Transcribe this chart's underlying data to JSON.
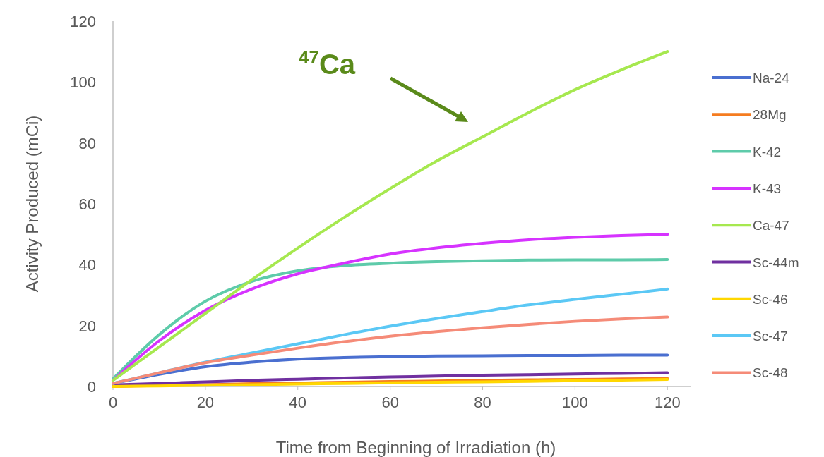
{
  "chart_data": {
    "type": "line",
    "xlabel": "Time from Beginning of Irradiation (h)",
    "ylabel": "Activity Produced (mCi)",
    "x": [
      0,
      10,
      20,
      30,
      40,
      50,
      60,
      70,
      80,
      90,
      100,
      110,
      120
    ],
    "xlim": [
      0,
      125
    ],
    "xticks": [
      0,
      20,
      40,
      60,
      80,
      100,
      120
    ],
    "ylim": [
      0,
      120
    ],
    "yticks": [
      0,
      20,
      40,
      60,
      80,
      100,
      120
    ],
    "grid": false,
    "legend": "right",
    "marker": "none",
    "line_style": "solid",
    "series": [
      {
        "name": "Na-24",
        "color": "#4a6fd0",
        "values": [
          1,
          4,
          6.5,
          8,
          9,
          9.5,
          9.8,
          10,
          10.1,
          10.2,
          10.2,
          10.3,
          10.3
        ]
      },
      {
        "name": "28Mg",
        "color": "#f57c20",
        "values": [
          0,
          0.3,
          0.6,
          0.9,
          1.1,
          1.4,
          1.6,
          1.8,
          2,
          2.2,
          2.3,
          2.5,
          2.6
        ]
      },
      {
        "name": "K-42",
        "color": "#5ecbaa",
        "values": [
          2.5,
          17,
          28,
          34.5,
          38,
          39.7,
          40.5,
          41,
          41.3,
          41.5,
          41.6,
          41.6,
          41.7
        ]
      },
      {
        "name": "K-43",
        "color": "#d633ff",
        "values": [
          2,
          15,
          25,
          32,
          37,
          40.5,
          43.5,
          45.5,
          47,
          48.2,
          49,
          49.6,
          50
        ]
      },
      {
        "name": "Ca-47",
        "color": "#a6e84f",
        "values": [
          2,
          13,
          24,
          35,
          45.5,
          55.5,
          65,
          74,
          82,
          90,
          97.5,
          104,
          110
        ]
      },
      {
        "name": "Sc-44m",
        "color": "#7030a0",
        "values": [
          0.5,
          1,
          1.5,
          2,
          2.4,
          2.8,
          3.1,
          3.4,
          3.7,
          3.9,
          4.1,
          4.3,
          4.5
        ]
      },
      {
        "name": "Sc-46",
        "color": "#ffd700",
        "values": [
          0,
          0.2,
          0.4,
          0.6,
          0.8,
          1,
          1.2,
          1.4,
          1.5,
          1.7,
          1.9,
          2.1,
          2.3
        ]
      },
      {
        "name": "Sc-47",
        "color": "#5bc8f5",
        "values": [
          1,
          4.5,
          8,
          11,
          14,
          17,
          19.8,
          22.3,
          24.6,
          26.8,
          28.6,
          30.3,
          32
        ]
      },
      {
        "name": "Sc-48",
        "color": "#f58b78",
        "values": [
          1,
          4.5,
          7.8,
          10.3,
          12.6,
          14.7,
          16.5,
          18,
          19.3,
          20.4,
          21.4,
          22.2,
          22.8
        ]
      }
    ],
    "annotations": [
      "$^{47}$Ca"
    ]
  }
}
